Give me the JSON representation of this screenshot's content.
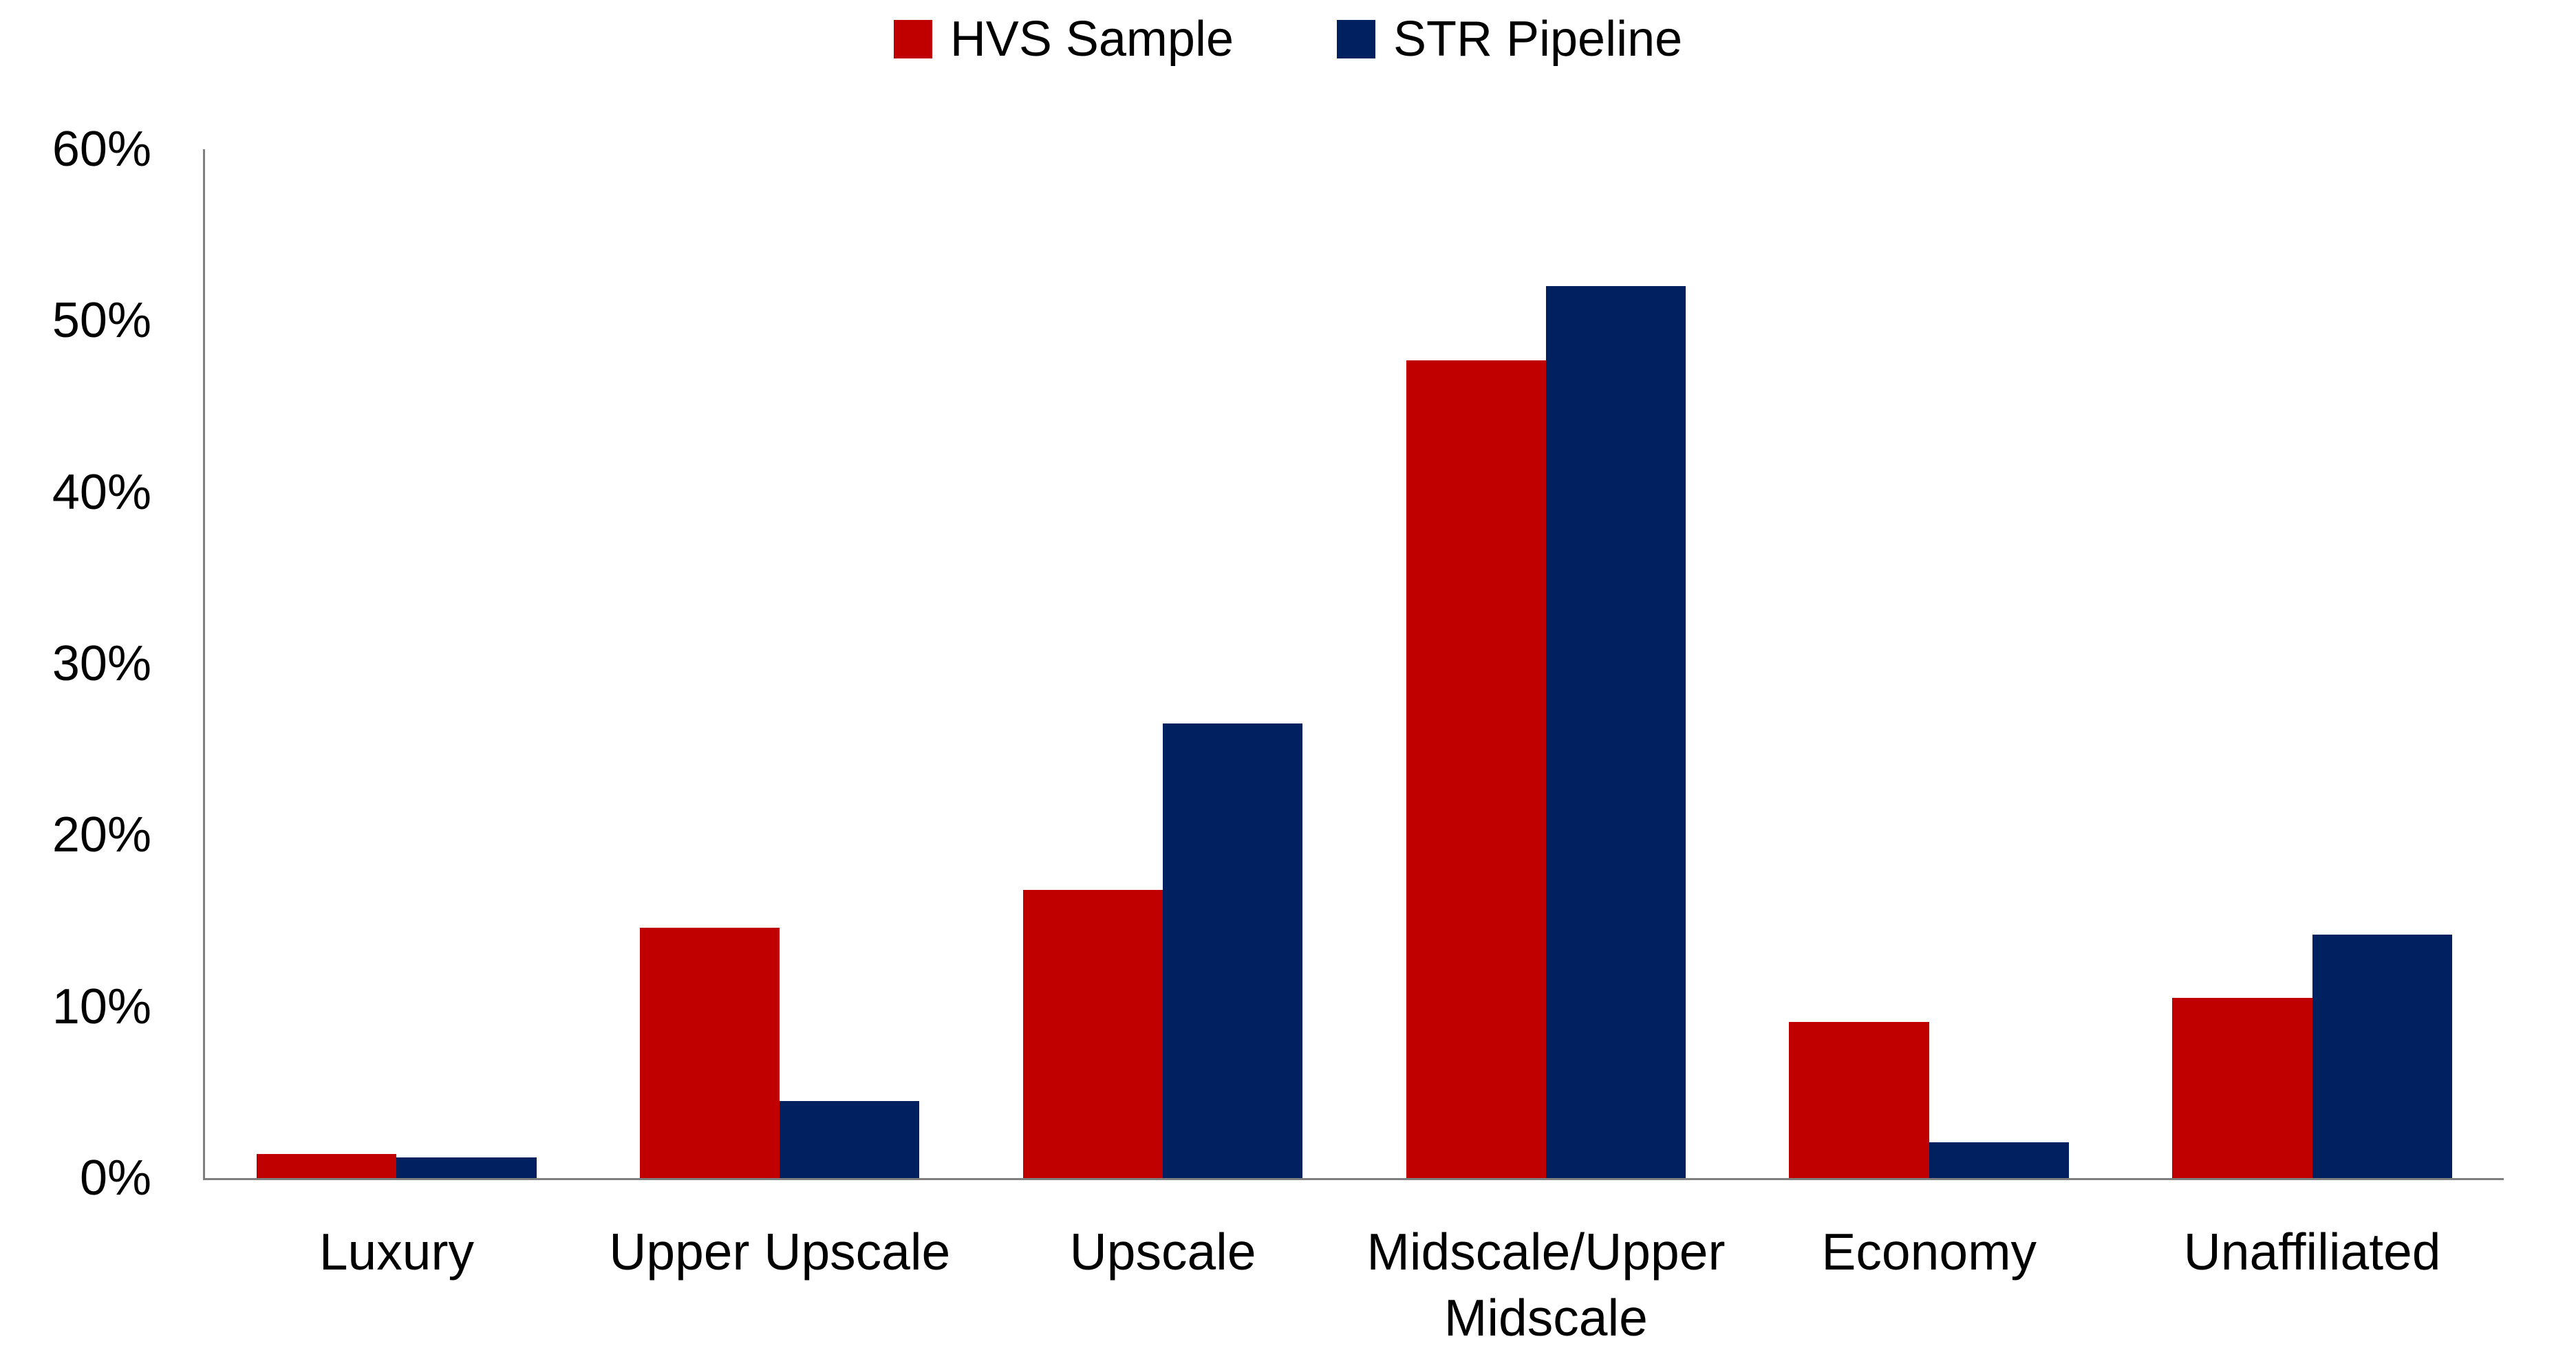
{
  "chart_data": {
    "type": "bar",
    "title": "",
    "categories": [
      "Luxury",
      "Upper Upscale",
      "Upscale",
      "Midscale/Upper\nMidscale",
      "Economy",
      "Unaffiliated"
    ],
    "series": [
      {
        "name": "HVS Sample",
        "color": "#C00000",
        "values": [
          1.4,
          14.6,
          16.8,
          47.7,
          9.1,
          10.5
        ]
      },
      {
        "name": "STR Pipeline",
        "color": "#002060",
        "values": [
          1.2,
          4.5,
          26.5,
          52.0,
          2.1,
          14.2
        ]
      }
    ],
    "y_axis": {
      "min": 0,
      "max": 60,
      "tick_step": 10,
      "tick_labels": [
        "0%",
        "10%",
        "20%",
        "30%",
        "40%",
        "50%",
        "60%"
      ],
      "format": "percent"
    },
    "grid": false,
    "legend_position": "top-center",
    "axis_color": "#7F7F7F",
    "text_color": "#000000"
  }
}
